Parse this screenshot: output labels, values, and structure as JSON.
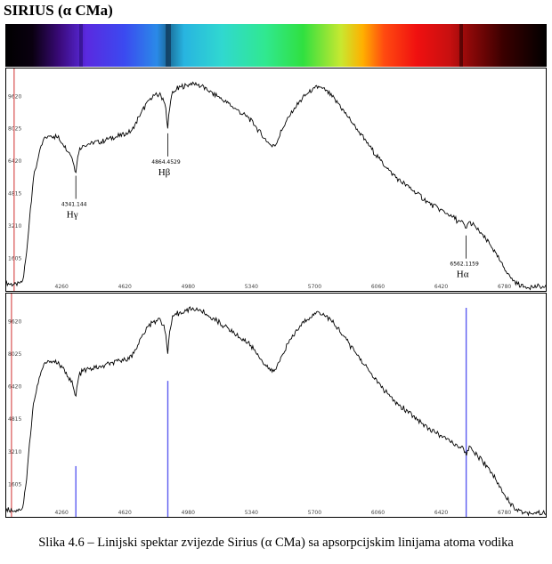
{
  "title": "SIRIUS (α CMa)",
  "caption": "Slika 4.6 – Linijski spektar zvijezde Sirius (α CMa) sa apsorpcijskim linijama atoma vodika",
  "chart_data": [
    {
      "type": "line",
      "panel": "top",
      "xlim": [
        3940,
        7020
      ],
      "ylim": [
        0,
        11000
      ],
      "x_ticks": [
        4260,
        4620,
        4980,
        5340,
        5700,
        6060,
        6420,
        6780
      ],
      "y_ticks": [
        1605,
        3210,
        4815,
        6420,
        8025,
        9620
      ],
      "red_marker_x": 3990,
      "annotations": [
        {
          "x": 4341.144,
          "value": "4341.144",
          "label": "Hγ"
        },
        {
          "x": 4864.4529,
          "value": "4864.4529",
          "label": "Hβ"
        },
        {
          "x": 6562.1159,
          "value": "6562.1159",
          "label": "Hα"
        }
      ]
    },
    {
      "type": "line",
      "panel": "bottom",
      "xlim": [
        3940,
        7020
      ],
      "ylim": [
        0,
        11000
      ],
      "x_ticks": [
        4260,
        4620,
        4980,
        5340,
        5700,
        6060,
        6420,
        6780
      ],
      "y_ticks": [
        1605,
        3210,
        4815,
        6420,
        8025,
        9620
      ],
      "red_marker_x": 3975,
      "absorption_lines": [
        {
          "x": 4341.144,
          "strength": 2500
        },
        {
          "x": 4864.4529,
          "strength": 6700
        },
        {
          "x": 6562.1159,
          "strength": 10300
        }
      ]
    }
  ],
  "series_shape": {
    "x": [
      3940,
      3990,
      4020,
      4040,
      4060,
      4080,
      4100,
      4130,
      4160,
      4200,
      4240,
      4270,
      4300,
      4320,
      4335,
      4341,
      4348,
      4360,
      4385,
      4420,
      4480,
      4540,
      4600,
      4660,
      4700,
      4740,
      4780,
      4820,
      4845,
      4855,
      4860,
      4864,
      4868,
      4875,
      4890,
      4920,
      4960,
      5000,
      5040,
      5080,
      5120,
      5160,
      5200,
      5240,
      5280,
      5320,
      5360,
      5400,
      5440,
      5460,
      5480,
      5500,
      5520,
      5560,
      5600,
      5640,
      5680,
      5720,
      5760,
      5800,
      5840,
      5880,
      5940,
      6000,
      6060,
      6120,
      6180,
      6240,
      6300,
      6360,
      6420,
      6480,
      6520,
      6545,
      6555,
      6562,
      6568,
      6580,
      6610,
      6650,
      6700,
      6740,
      6780,
      6820,
      6860,
      6900,
      6960,
      7020
    ],
    "y": [
      400,
      300,
      360,
      500,
      1800,
      3800,
      5600,
      6700,
      7500,
      7700,
      7600,
      7250,
      6900,
      6600,
      6000,
      5950,
      6400,
      7000,
      7200,
      7300,
      7350,
      7550,
      7700,
      7900,
      8600,
      9200,
      9650,
      9700,
      9400,
      8900,
      8200,
      8000,
      8500,
      9100,
      9800,
      10000,
      10150,
      10250,
      10200,
      10000,
      9750,
      9550,
      9300,
      9050,
      8800,
      8600,
      8200,
      7700,
      7300,
      7150,
      7300,
      7700,
      8100,
      8700,
      9200,
      9600,
      9900,
      10100,
      9950,
      9600,
      9200,
      8700,
      8000,
      7300,
      6600,
      6000,
      5500,
      5100,
      4700,
      4300,
      4000,
      3650,
      3450,
      3350,
      3150,
      3000,
      3300,
      3400,
      3200,
      2800,
      2300,
      1700,
      1100,
      600,
      300,
      220,
      200,
      180
    ]
  },
  "colors": {
    "curve": "#000000",
    "absorption_line": "#5c5cf0",
    "red_marker": "#d03030",
    "tick_label": "#444444"
  }
}
